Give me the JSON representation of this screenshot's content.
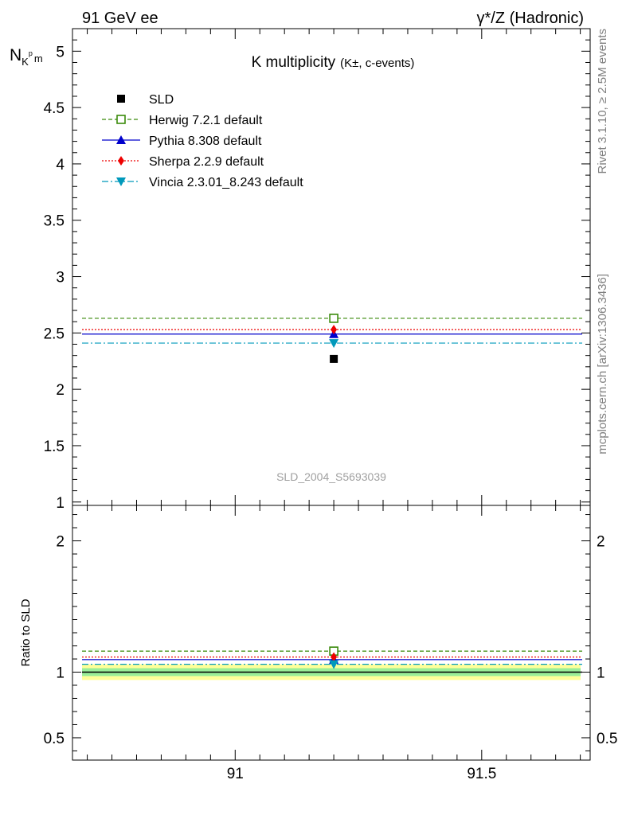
{
  "header": {
    "left": "91 GeV ee",
    "right": "γ*/Z (Hadronic)"
  },
  "side_labels": {
    "rivet": "Rivet 3.1.10, ≥ 2.5M events",
    "mcplots": "mcplots.cern.ch [arXiv:1306.3436]"
  },
  "chart_data": [
    {
      "type": "scatter",
      "panel": "main",
      "title": "K multiplicity",
      "title_sub": "(K±, c-events)",
      "ylabel": "N",
      "ylabel_sub": "K",
      "ylabel_sup": "p",
      "ylabel_sub2": "m",
      "watermark": "SLD_2004_S5693039",
      "xlim": [
        90.67,
        91.72
      ],
      "ylim": [
        0.97,
        5.2
      ],
      "yticks": [
        1,
        1.5,
        2,
        2.5,
        3,
        3.5,
        4,
        4.5,
        5
      ],
      "ytick_labels": [
        "1",
        "1.5",
        "2",
        "2.5",
        "3",
        "3.5",
        "4",
        "4.5",
        "5"
      ],
      "legend_position": "top-left",
      "series": [
        {
          "name": "SLD",
          "x": [
            91.2
          ],
          "y": [
            2.27
          ],
          "color": "#000000",
          "marker": "square-filled",
          "line": "none"
        },
        {
          "name": "Herwig 7.2.1 default",
          "x": [
            91.2
          ],
          "y": [
            2.63
          ],
          "color": "#3a8a0a",
          "marker": "square-open",
          "line": "dashed"
        },
        {
          "name": "Pythia 8.308 default",
          "x": [
            91.2
          ],
          "y": [
            2.49
          ],
          "color": "#0000cc",
          "marker": "triangle-up",
          "line": "solid"
        },
        {
          "name": "Sherpa 2.2.9 default",
          "x": [
            91.2
          ],
          "y": [
            2.53
          ],
          "color": "#ee0000",
          "marker": "diamond",
          "line": "dotted"
        },
        {
          "name": "Vincia 2.3.01_8.243 default",
          "x": [
            91.2
          ],
          "y": [
            2.41
          ],
          "color": "#0099bb",
          "marker": "triangle-down",
          "line": "dashdot"
        }
      ]
    },
    {
      "type": "scatter",
      "panel": "ratio",
      "ylabel": "Ratio to SLD",
      "xlim": [
        90.67,
        91.72
      ],
      "ylim": [
        0.33,
        2.27
      ],
      "xticks": [
        91,
        91.5
      ],
      "xtick_labels": [
        "91",
        "91.5"
      ],
      "yticks": [
        0.5,
        1,
        2
      ],
      "ytick_labels": [
        "0.5",
        "1",
        "2"
      ],
      "uncertainty_band": {
        "inner": [
          0.97,
          1.03
        ],
        "outer": [
          0.94,
          1.06
        ]
      },
      "series": [
        {
          "name": "SLD",
          "y": [
            1.0
          ],
          "color": "#000000"
        },
        {
          "name": "Herwig 7.2.1 default",
          "y": [
            1.16
          ],
          "color": "#3a8a0a",
          "marker": "square-open",
          "line": "dashed"
        },
        {
          "name": "Pythia 8.308 default",
          "y": [
            1.095
          ],
          "color": "#0000cc",
          "marker": "triangle-up",
          "line": "solid"
        },
        {
          "name": "Sherpa 2.2.9 default",
          "y": [
            1.115
          ],
          "color": "#ee0000",
          "marker": "diamond",
          "line": "dotted"
        },
        {
          "name": "Vincia 2.3.01_8.243 default",
          "y": [
            1.06
          ],
          "color": "#0099bb",
          "marker": "triangle-down",
          "line": "dashdot"
        }
      ]
    }
  ]
}
